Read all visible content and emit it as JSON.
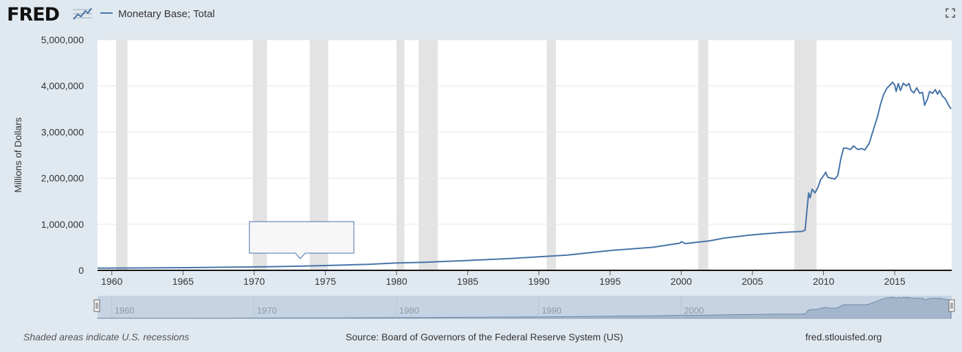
{
  "header": {
    "logo": "FRED",
    "logo_icon": "trend-graph-icon",
    "fullscreen_icon": "fullscreen-icon"
  },
  "chart_data": {
    "type": "line",
    "title": "",
    "series": [
      {
        "name": "Monetary Base; Total",
        "color": "#4572a7",
        "points": [
          [
            1959.0,
            49000
          ],
          [
            1962,
            52000
          ],
          [
            1965,
            58000
          ],
          [
            1968,
            68000
          ],
          [
            1970,
            74000
          ],
          [
            1973,
            90000
          ],
          [
            1975,
            104000
          ],
          [
            1978,
            130000
          ],
          [
            1980,
            160000
          ],
          [
            1982,
            175000
          ],
          [
            1985,
            215000
          ],
          [
            1988,
            258000
          ],
          [
            1990,
            293000
          ],
          [
            1992,
            330000
          ],
          [
            1995,
            430000
          ],
          [
            1998,
            500000
          ],
          [
            1999.9,
            590000
          ],
          [
            2000.0,
            620000
          ],
          [
            2000.3,
            580000
          ],
          [
            2002,
            640000
          ],
          [
            2003,
            700000
          ],
          [
            2005,
            770000
          ],
          [
            2007,
            820000
          ],
          [
            2008.5,
            845000
          ],
          [
            2008.7,
            870000
          ],
          [
            2008.8,
            1200000
          ],
          [
            2008.95,
            1680000
          ],
          [
            2009.05,
            1570000
          ],
          [
            2009.2,
            1760000
          ],
          [
            2009.4,
            1680000
          ],
          [
            2009.6,
            1800000
          ],
          [
            2009.8,
            1970000
          ],
          [
            2010.0,
            2050000
          ],
          [
            2010.15,
            2130000
          ],
          [
            2010.3,
            2020000
          ],
          [
            2010.5,
            2000000
          ],
          [
            2010.8,
            1980000
          ],
          [
            2011.0,
            2060000
          ],
          [
            2011.2,
            2400000
          ],
          [
            2011.4,
            2650000
          ],
          [
            2011.6,
            2650000
          ],
          [
            2011.9,
            2620000
          ],
          [
            2012.1,
            2700000
          ],
          [
            2012.4,
            2620000
          ],
          [
            2012.7,
            2640000
          ],
          [
            2012.9,
            2610000
          ],
          [
            2013.2,
            2750000
          ],
          [
            2013.5,
            3050000
          ],
          [
            2013.8,
            3350000
          ],
          [
            2014.0,
            3600000
          ],
          [
            2014.2,
            3800000
          ],
          [
            2014.45,
            3950000
          ],
          [
            2014.7,
            4030000
          ],
          [
            2014.85,
            4080000
          ],
          [
            2015.0,
            4020000
          ],
          [
            2015.1,
            3880000
          ],
          [
            2015.25,
            4050000
          ],
          [
            2015.4,
            3900000
          ],
          [
            2015.6,
            4060000
          ],
          [
            2015.8,
            4000000
          ],
          [
            2016.0,
            4050000
          ],
          [
            2016.15,
            3900000
          ],
          [
            2016.35,
            3850000
          ],
          [
            2016.55,
            3960000
          ],
          [
            2016.75,
            3840000
          ],
          [
            2016.95,
            3860000
          ],
          [
            2017.1,
            3580000
          ],
          [
            2017.3,
            3720000
          ],
          [
            2017.45,
            3880000
          ],
          [
            2017.65,
            3840000
          ],
          [
            2017.85,
            3920000
          ],
          [
            2018.0,
            3820000
          ],
          [
            2018.15,
            3900000
          ],
          [
            2018.35,
            3780000
          ],
          [
            2018.55,
            3720000
          ],
          [
            2018.75,
            3600000
          ],
          [
            2018.95,
            3500000
          ]
        ]
      }
    ],
    "recessions": [
      [
        1960.3,
        1961.1
      ],
      [
        1969.9,
        1970.9
      ],
      [
        1973.9,
        1975.2
      ],
      [
        1980.0,
        1980.55
      ],
      [
        1981.55,
        1982.9
      ],
      [
        1990.55,
        1991.2
      ],
      [
        2001.2,
        2001.9
      ],
      [
        2007.95,
        2009.5
      ]
    ],
    "xlim": [
      1959,
      2019
    ],
    "ylim": [
      0,
      5000000
    ],
    "y_ticks": [
      0,
      1000000,
      2000000,
      3000000,
      4000000,
      5000000
    ],
    "y_tick_labels": [
      "0",
      "1,000,000",
      "2,000,000",
      "3,000,000",
      "4,000,000",
      "5,000,000"
    ],
    "x_ticks": [
      1960,
      1965,
      1970,
      1975,
      1980,
      1985,
      1990,
      1995,
      2000,
      2005,
      2010,
      2015
    ],
    "x_tick_labels": [
      "1960",
      "1965",
      "1970",
      "1975",
      "1980",
      "1985",
      "1990",
      "1995",
      "2000",
      "2005",
      "2010",
      "2015"
    ],
    "xlabel": "",
    "ylabel": "Millions of Dollars",
    "grid": true,
    "legend_position": "top-left",
    "navigator": {
      "x_ticks": [
        1960,
        1970,
        1980,
        1990,
        2000
      ],
      "x_tick_labels": [
        "1960",
        "1970",
        "1980",
        "1990",
        "2000"
      ]
    }
  },
  "footer": {
    "recession_note": "Shaded areas indicate U.S. recessions",
    "source": "Source: Board of Governors of the Federal Reserve System (US)",
    "site": "fred.stlouisfed.org"
  }
}
